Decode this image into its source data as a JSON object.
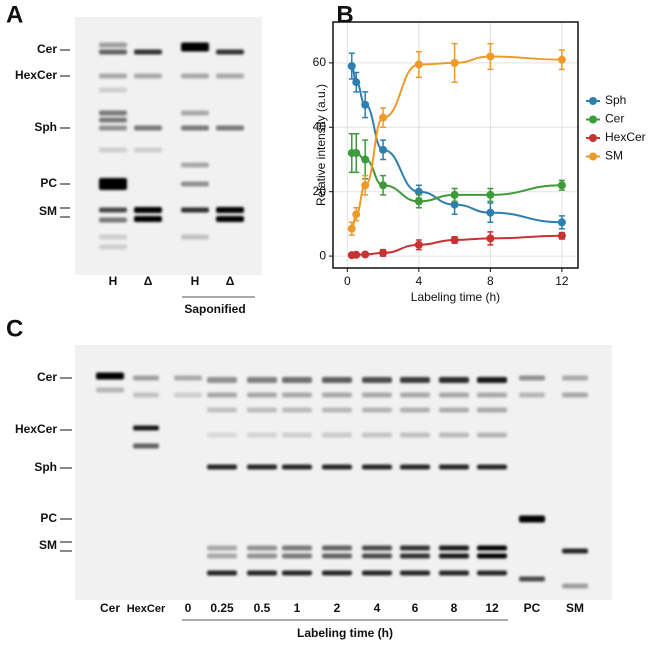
{
  "panel_a": {
    "label": "A",
    "rows": [
      "Cer",
      "HexCer",
      "Sph",
      "PC",
      "SM"
    ],
    "lanes": [
      "H",
      "Δ",
      "H",
      "Δ"
    ],
    "group": "Saponified"
  },
  "chart_data": {
    "type": "line",
    "label": "B",
    "x_label": "Labeling time (h)",
    "y_label": "Relative intensity (a.u.)",
    "x": [
      0.25,
      0.5,
      1,
      2,
      4,
      6,
      8,
      12
    ],
    "series": [
      {
        "name": "Sph",
        "color": "#2e7fb0",
        "values": [
          59,
          54,
          47,
          33,
          20,
          16,
          13.5,
          10.5
        ],
        "errors": [
          4,
          3,
          4,
          3,
          2,
          3,
          3,
          2
        ]
      },
      {
        "name": "Cer",
        "color": "#3e9a3a",
        "values": [
          32,
          32,
          30,
          22,
          17,
          19,
          19,
          22
        ],
        "errors": [
          6,
          6,
          6,
          3,
          2,
          2,
          2,
          1.5
        ]
      },
      {
        "name": "HexCer",
        "color": "#c83232",
        "values": [
          0.3,
          0.4,
          0.5,
          1,
          3.5,
          5,
          5.5,
          6.3
        ],
        "errors": [
          0.5,
          0.5,
          0.5,
          1,
          1.5,
          1,
          2,
          1
        ]
      },
      {
        "name": "SM",
        "color": "#ee9a2a",
        "values": [
          8.5,
          13,
          22,
          43,
          59.5,
          60,
          62,
          61
        ],
        "errors": [
          2,
          2,
          3,
          3,
          4,
          6,
          4,
          3
        ]
      }
    ],
    "xlim": [
      -0.8,
      12.9
    ],
    "xticks": [
      0,
      4,
      8,
      12
    ],
    "ylim": [
      -3.7,
      72.7
    ],
    "yticks": [
      0,
      20,
      40,
      60
    ],
    "grid": true,
    "legend": "right"
  },
  "panel_c": {
    "label": "C",
    "rows": [
      "Cer",
      "HexCer",
      "Sph",
      "PC",
      "SM"
    ],
    "lanes": [
      "Cer",
      "HexCer",
      "0",
      "0.25",
      "0.5",
      "1",
      "2",
      "4",
      "6",
      "8",
      "12",
      "PC",
      "SM"
    ],
    "group": "Labeling time (h)"
  }
}
